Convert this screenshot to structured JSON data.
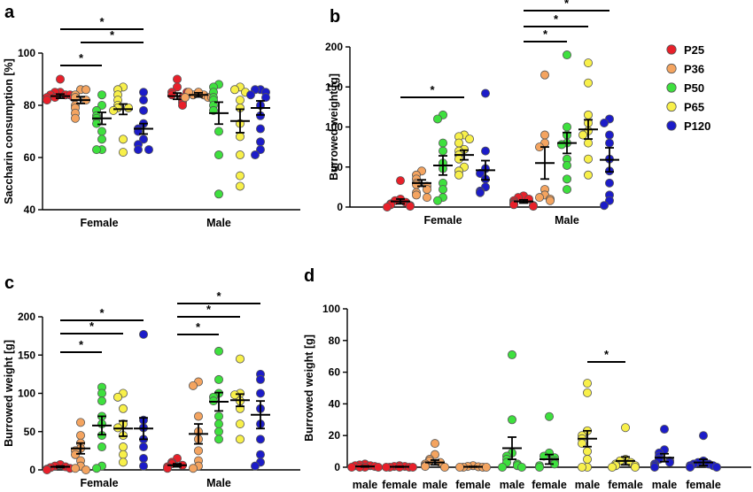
{
  "legend": {
    "placement": "right",
    "entries": [
      {
        "label": "P25",
        "color": "#e8202a"
      },
      {
        "label": "P36",
        "color": "#f4a460"
      },
      {
        "label": "P50",
        "color": "#3ee03e"
      },
      {
        "label": "P65",
        "color": "#f8f04a"
      },
      {
        "label": "P120",
        "color": "#1c1cc8"
      }
    ]
  },
  "chart_data": [
    {
      "panel": "a",
      "type": "scatter",
      "ylabel": "Saccharin consumption [%]",
      "ylim": [
        40,
        100
      ],
      "yticks": [
        40,
        60,
        80,
        100
      ],
      "groups": [
        "Female",
        "Male"
      ],
      "series_names": [
        "P25",
        "P36",
        "P50",
        "P65",
        "P120"
      ],
      "mean_sem": {
        "Female": [
          [
            83.5,
            0.8
          ],
          [
            82,
            1.3
          ],
          [
            75,
            2.3
          ],
          [
            78.5,
            2.0
          ],
          [
            71,
            2.0
          ]
        ],
        "Male": [
          [
            83.5,
            1.2
          ],
          [
            84,
            0.8
          ],
          [
            77,
            4.2
          ],
          [
            74,
            4.5
          ],
          [
            79,
            2.7
          ]
        ]
      },
      "points": {
        "Female": [
          [
            90,
            85,
            85,
            84,
            84,
            84,
            83,
            83,
            82,
            83
          ],
          [
            86,
            84,
            83,
            82,
            80,
            79,
            77,
            75,
            86
          ],
          [
            84,
            80,
            78,
            76,
            75,
            73,
            70,
            67,
            63,
            63
          ],
          [
            87,
            86,
            84,
            82,
            80,
            79,
            79,
            78,
            67,
            62
          ],
          [
            85,
            82,
            78,
            73,
            71,
            70,
            67,
            65,
            63,
            63
          ]
        ],
        "Male": [
          [
            90,
            87,
            85,
            84,
            83,
            82,
            81,
            80,
            85
          ],
          [
            85,
            84,
            84,
            85,
            83,
            83,
            83,
            85
          ],
          [
            88,
            87,
            85,
            83,
            82,
            80,
            78,
            70,
            61,
            46
          ],
          [
            87,
            86,
            85,
            82,
            79,
            73,
            68,
            61,
            53,
            49
          ],
          [
            86,
            86,
            85,
            84,
            83,
            80,
            76,
            71,
            66,
            63,
            61
          ]
        ]
      },
      "significance": [
        {
          "label": "*",
          "from": [
            "Female",
            "P25"
          ],
          "to": [
            "Female",
            "P50"
          ]
        },
        {
          "label": "*",
          "from": [
            "Female",
            "P36"
          ],
          "to": [
            "Female",
            "P120"
          ]
        },
        {
          "label": "*",
          "from": [
            "Female",
            "P25"
          ],
          "to": [
            "Female",
            "P120"
          ]
        }
      ]
    },
    {
      "panel": "b",
      "type": "scatter",
      "ylabel": "Burrowed weight [g]",
      "ylim": [
        0,
        200
      ],
      "yticks": [
        0,
        50,
        100,
        150,
        200
      ],
      "groups": [
        "Female",
        "Male"
      ],
      "series_names": [
        "P25",
        "P36",
        "P50",
        "P65",
        "P120"
      ],
      "mean_sem": {
        "Female": [
          [
            7,
            3
          ],
          [
            30,
            4
          ],
          [
            52,
            12
          ],
          [
            65,
            6
          ],
          [
            46,
            12
          ]
        ],
        "Male": [
          [
            7,
            2
          ],
          [
            55,
            20
          ],
          [
            80,
            13
          ],
          [
            97,
            12
          ],
          [
            59,
            15
          ]
        ]
      },
      "points": {
        "Female": [
          [
            33,
            10,
            8,
            6,
            4,
            3,
            2,
            1,
            0
          ],
          [
            45,
            40,
            35,
            30,
            28,
            26,
            22,
            18,
            15,
            12
          ],
          [
            115,
            110,
            80,
            70,
            55,
            48,
            30,
            22,
            12,
            8
          ],
          [
            90,
            88,
            85,
            80,
            72,
            70,
            65,
            60,
            50,
            45,
            40
          ],
          [
            142,
            70,
            48,
            42,
            35,
            25,
            20,
            18
          ]
        ],
        "Male": [
          [
            14,
            12,
            10,
            8,
            6,
            4,
            3,
            2,
            1
          ],
          [
            165,
            90,
            80,
            75,
            22,
            15,
            12,
            10,
            8
          ],
          [
            190,
            100,
            90,
            80,
            78,
            60,
            52,
            35,
            22
          ],
          [
            180,
            155,
            115,
            105,
            95,
            90,
            80,
            60,
            40
          ],
          [
            110,
            105,
            90,
            80,
            60,
            45,
            30,
            15,
            8,
            2
          ]
        ]
      },
      "significance": [
        {
          "label": "*",
          "from": [
            "Female",
            "P25"
          ],
          "to": [
            "Female",
            "P65"
          ]
        },
        {
          "label": "*",
          "from": [
            "Male",
            "P25"
          ],
          "to": [
            "Male",
            "P50"
          ]
        },
        {
          "label": "*",
          "from": [
            "Male",
            "P25"
          ],
          "to": [
            "Male",
            "P65"
          ]
        },
        {
          "label": "*",
          "from": [
            "Male",
            "P25"
          ],
          "to": [
            "Male",
            "P120"
          ]
        }
      ]
    },
    {
      "panel": "c",
      "type": "scatter",
      "ylabel": "Burrowed weight [g]",
      "ylim": [
        0,
        200
      ],
      "yticks": [
        0,
        50,
        100,
        150,
        200
      ],
      "groups": [
        "Female",
        "Male"
      ],
      "series_names": [
        "P25",
        "P36",
        "P50",
        "P65",
        "P120"
      ],
      "mean_sem": {
        "Female": [
          [
            4,
            1
          ],
          [
            28,
            7
          ],
          [
            58,
            12
          ],
          [
            54,
            10
          ],
          [
            54,
            14
          ]
        ],
        "Male": [
          [
            6,
            2
          ],
          [
            47,
            13
          ],
          [
            89,
            12
          ],
          [
            91,
            8
          ],
          [
            72,
            18
          ]
        ]
      },
      "points": {
        "Female": [
          [
            7,
            5,
            4,
            3,
            2,
            1,
            0
          ],
          [
            62,
            45,
            35,
            28,
            25,
            20,
            12,
            5,
            2,
            0
          ],
          [
            108,
            100,
            90,
            70,
            60,
            45,
            30,
            5,
            2
          ],
          [
            100,
            95,
            80,
            60,
            55,
            45,
            30,
            20,
            10
          ],
          [
            177,
            65,
            55,
            40,
            30,
            15,
            5
          ]
        ],
        "Male": [
          [
            15,
            10,
            8,
            6,
            4,
            2
          ],
          [
            115,
            110,
            70,
            50,
            40,
            25,
            12,
            5,
            2
          ],
          [
            155,
            118,
            100,
            95,
            90,
            70,
            60,
            50,
            40
          ],
          [
            145,
            100,
            98,
            90,
            80,
            60,
            40
          ],
          [
            125,
            118,
            100,
            80,
            60,
            40,
            20,
            10,
            5
          ]
        ]
      },
      "significance": [
        {
          "label": "*",
          "from": [
            "Female",
            "P25"
          ],
          "to": [
            "Female",
            "P50"
          ]
        },
        {
          "label": "*",
          "from": [
            "Female",
            "P25"
          ],
          "to": [
            "Female",
            "P65"
          ]
        },
        {
          "label": "*",
          "from": [
            "Female",
            "P25"
          ],
          "to": [
            "Female",
            "P120"
          ]
        },
        {
          "label": "*",
          "from": [
            "Male",
            "P25"
          ],
          "to": [
            "Male",
            "P50"
          ]
        },
        {
          "label": "*",
          "from": [
            "Male",
            "P25"
          ],
          "to": [
            "Male",
            "P65"
          ]
        },
        {
          "label": "*",
          "from": [
            "Male",
            "P25"
          ],
          "to": [
            "Male",
            "P120"
          ]
        }
      ]
    },
    {
      "panel": "d",
      "type": "scatter",
      "ylabel": "Burrowed weight [g]",
      "ylim": [
        0,
        100
      ],
      "yticks": [
        0,
        20,
        40,
        60,
        80,
        100
      ],
      "categories": [
        "male",
        "female",
        "male",
        "female",
        "male",
        "female",
        "male",
        "female",
        "male",
        "female"
      ],
      "colors": [
        "#e8202a",
        "#e8202a",
        "#f4a460",
        "#f4a460",
        "#3ee03e",
        "#3ee03e",
        "#f8f04a",
        "#f8f04a",
        "#1c1cc8",
        "#1c1cc8"
      ],
      "mean_sem": [
        [
          0.5,
          0.3
        ],
        [
          0.3,
          0.2
        ],
        [
          3,
          1.5
        ],
        [
          0.3,
          0.2
        ],
        [
          12,
          7
        ],
        [
          5,
          3
        ],
        [
          18,
          5
        ],
        [
          4,
          2.5
        ],
        [
          6,
          2.5
        ],
        [
          3,
          2
        ]
      ],
      "points": [
        [
          2,
          1.5,
          1,
          1,
          0.5,
          0,
          0,
          0,
          0
        ],
        [
          1,
          0.5,
          0.5,
          0,
          0,
          0,
          0,
          0
        ],
        [
          15,
          8,
          5,
          4,
          3,
          2,
          1,
          0.5,
          0
        ],
        [
          1,
          0.5,
          0.3,
          0,
          0,
          0,
          0
        ],
        [
          71,
          30,
          9,
          7,
          5,
          3,
          2,
          1,
          0,
          0
        ],
        [
          32,
          9,
          7,
          6,
          4,
          3,
          2,
          1,
          0
        ],
        [
          53,
          47,
          23,
          20,
          18,
          15,
          10,
          5,
          0,
          0
        ],
        [
          25,
          5,
          4,
          3,
          2,
          1,
          1,
          0,
          0
        ],
        [
          24,
          11,
          9,
          7,
          5,
          4,
          3,
          2,
          1,
          0
        ],
        [
          20,
          4,
          3,
          2,
          2,
          1,
          1,
          0,
          0
        ]
      ],
      "significance": [
        {
          "label": "*",
          "from_index": 6,
          "to_index": 7
        }
      ]
    }
  ]
}
